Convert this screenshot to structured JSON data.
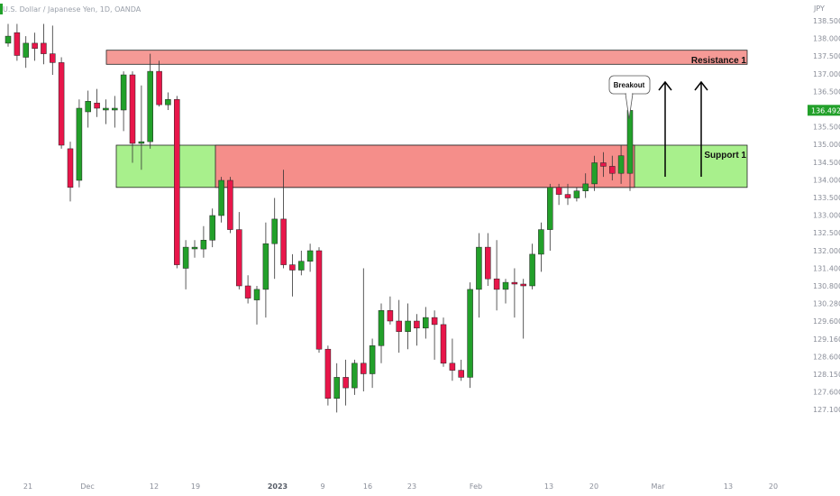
{
  "chart_data": {
    "type": "candlestick",
    "symbol_title": "U.S. Dollar / Japanese Yen, 1D, OANDA",
    "currency": "JPY",
    "last_price": "136.492",
    "y_ticks": [
      "138.500",
      "138.000",
      "137.500",
      "137.000",
      "136.500",
      "136.000",
      "135.500",
      "135.000",
      "134.500",
      "134.000",
      "133.500",
      "133.000",
      "132.500",
      "132.000",
      "131.400",
      "130.800",
      "130.280",
      "129.600",
      "129.160",
      "128.600",
      "128.150",
      "127.600",
      "127.100"
    ],
    "x_ticks": [
      {
        "label": "21",
        "bold": false
      },
      {
        "label": "Dec",
        "bold": false
      },
      {
        "label": "12",
        "bold": false
      },
      {
        "label": "19",
        "bold": false
      },
      {
        "label": "2023",
        "bold": true
      },
      {
        "label": "9",
        "bold": false
      },
      {
        "label": "16",
        "bold": false
      },
      {
        "label": "23",
        "bold": false
      },
      {
        "label": "Feb",
        "bold": false
      },
      {
        "label": "13",
        "bold": false
      },
      {
        "label": "20",
        "bold": false
      },
      {
        "label": "Mar",
        "bold": false
      },
      {
        "label": "13",
        "bold": false
      },
      {
        "label": "20",
        "bold": false
      }
    ],
    "up_color": "#22a02a",
    "down_color": "#e8164a",
    "candles": [
      {
        "o": 138.4,
        "h": 138.95,
        "l": 138.3,
        "c": 138.6
      },
      {
        "o": 138.7,
        "h": 138.95,
        "l": 137.9,
        "c": 138.05
      },
      {
        "o": 138.0,
        "h": 138.6,
        "l": 137.7,
        "c": 138.4
      },
      {
        "o": 138.4,
        "h": 138.7,
        "l": 137.9,
        "c": 138.25
      },
      {
        "o": 138.4,
        "h": 138.95,
        "l": 137.8,
        "c": 138.1
      },
      {
        "o": 138.1,
        "h": 138.9,
        "l": 137.5,
        "c": 137.85
      },
      {
        "o": 137.85,
        "h": 138.0,
        "l": 135.4,
        "c": 135.5
      },
      {
        "o": 135.4,
        "h": 135.6,
        "l": 133.9,
        "c": 134.3
      },
      {
        "o": 134.5,
        "h": 136.8,
        "l": 134.3,
        "c": 136.55
      },
      {
        "o": 136.45,
        "h": 137.05,
        "l": 136.0,
        "c": 136.75
      },
      {
        "o": 136.7,
        "h": 137.1,
        "l": 136.3,
        "c": 136.55
      },
      {
        "o": 136.5,
        "h": 136.8,
        "l": 136.1,
        "c": 136.55
      },
      {
        "o": 136.5,
        "h": 136.9,
        "l": 136.0,
        "c": 136.55
      },
      {
        "o": 136.5,
        "h": 137.6,
        "l": 135.9,
        "c": 137.5
      },
      {
        "o": 137.5,
        "h": 137.6,
        "l": 135.0,
        "c": 135.55
      },
      {
        "o": 135.55,
        "h": 137.2,
        "l": 134.8,
        "c": 135.6
      },
      {
        "o": 135.6,
        "h": 138.1,
        "l": 135.4,
        "c": 137.6
      },
      {
        "o": 137.6,
        "h": 137.9,
        "l": 136.6,
        "c": 136.65
      },
      {
        "o": 136.65,
        "h": 137.0,
        "l": 136.5,
        "c": 136.8
      },
      {
        "o": 136.8,
        "h": 136.9,
        "l": 132.0,
        "c": 132.1
      },
      {
        "o": 132.0,
        "h": 132.8,
        "l": 131.4,
        "c": 132.6
      },
      {
        "o": 132.55,
        "h": 132.8,
        "l": 132.3,
        "c": 132.6
      },
      {
        "o": 132.55,
        "h": 133.2,
        "l": 132.3,
        "c": 132.8
      },
      {
        "o": 132.8,
        "h": 133.7,
        "l": 132.6,
        "c": 133.5
      },
      {
        "o": 133.5,
        "h": 134.6,
        "l": 133.3,
        "c": 134.5
      },
      {
        "o": 134.5,
        "h": 134.6,
        "l": 133.0,
        "c": 133.1
      },
      {
        "o": 133.1,
        "h": 133.6,
        "l": 131.4,
        "c": 131.5
      },
      {
        "o": 131.5,
        "h": 131.8,
        "l": 131.0,
        "c": 131.15
      },
      {
        "o": 131.1,
        "h": 131.5,
        "l": 130.4,
        "c": 131.4
      },
      {
        "o": 131.4,
        "h": 133.3,
        "l": 130.6,
        "c": 132.7
      },
      {
        "o": 132.7,
        "h": 134.0,
        "l": 131.7,
        "c": 133.4
      },
      {
        "o": 133.4,
        "h": 134.8,
        "l": 132.0,
        "c": 132.1
      },
      {
        "o": 132.1,
        "h": 132.4,
        "l": 131.2,
        "c": 131.95
      },
      {
        "o": 131.95,
        "h": 132.5,
        "l": 131.8,
        "c": 132.2
      },
      {
        "o": 132.2,
        "h": 132.7,
        "l": 131.9,
        "c": 132.5
      },
      {
        "o": 132.5,
        "h": 132.6,
        "l": 129.6,
        "c": 129.7
      },
      {
        "o": 129.7,
        "h": 129.8,
        "l": 128.1,
        "c": 128.3
      },
      {
        "o": 128.3,
        "h": 129.3,
        "l": 127.9,
        "c": 128.9
      },
      {
        "o": 128.9,
        "h": 129.4,
        "l": 128.1,
        "c": 128.6
      },
      {
        "o": 128.6,
        "h": 129.4,
        "l": 128.4,
        "c": 129.3
      },
      {
        "o": 129.3,
        "h": 132.0,
        "l": 128.5,
        "c": 129.0
      },
      {
        "o": 129.0,
        "h": 130.0,
        "l": 128.6,
        "c": 129.8
      },
      {
        "o": 129.8,
        "h": 131.0,
        "l": 129.3,
        "c": 130.8
      },
      {
        "o": 130.8,
        "h": 131.2,
        "l": 130.4,
        "c": 130.5
      },
      {
        "o": 130.5,
        "h": 131.1,
        "l": 129.6,
        "c": 130.2
      },
      {
        "o": 130.2,
        "h": 131.0,
        "l": 129.7,
        "c": 130.5
      },
      {
        "o": 130.5,
        "h": 130.7,
        "l": 129.8,
        "c": 130.3
      },
      {
        "o": 130.3,
        "h": 130.9,
        "l": 130.0,
        "c": 130.6
      },
      {
        "o": 130.6,
        "h": 130.8,
        "l": 129.4,
        "c": 130.4
      },
      {
        "o": 130.4,
        "h": 130.6,
        "l": 129.2,
        "c": 129.3
      },
      {
        "o": 129.3,
        "h": 130.0,
        "l": 128.8,
        "c": 129.1
      },
      {
        "o": 129.1,
        "h": 129.4,
        "l": 128.8,
        "c": 128.9
      },
      {
        "o": 128.9,
        "h": 131.6,
        "l": 128.6,
        "c": 131.4
      },
      {
        "o": 131.4,
        "h": 133.0,
        "l": 130.6,
        "c": 132.6
      },
      {
        "o": 132.6,
        "h": 133.0,
        "l": 131.5,
        "c": 131.7
      },
      {
        "o": 131.7,
        "h": 132.8,
        "l": 130.8,
        "c": 131.4
      },
      {
        "o": 131.4,
        "h": 131.7,
        "l": 131.0,
        "c": 131.6
      },
      {
        "o": 131.6,
        "h": 132.0,
        "l": 130.6,
        "c": 131.55
      },
      {
        "o": 131.55,
        "h": 131.7,
        "l": 130.0,
        "c": 131.5
      },
      {
        "o": 131.5,
        "h": 132.7,
        "l": 131.4,
        "c": 132.4
      },
      {
        "o": 132.4,
        "h": 133.3,
        "l": 131.9,
        "c": 133.1
      },
      {
        "o": 133.1,
        "h": 134.4,
        "l": 132.5,
        "c": 134.3
      },
      {
        "o": 134.3,
        "h": 134.4,
        "l": 133.8,
        "c": 134.1
      },
      {
        "o": 134.1,
        "h": 134.4,
        "l": 133.8,
        "c": 134.0
      },
      {
        "o": 134.0,
        "h": 134.3,
        "l": 133.9,
        "c": 134.2
      },
      {
        "o": 134.2,
        "h": 134.7,
        "l": 134.0,
        "c": 134.4
      },
      {
        "o": 134.4,
        "h": 135.2,
        "l": 134.2,
        "c": 135.0
      },
      {
        "o": 135.0,
        "h": 135.3,
        "l": 134.6,
        "c": 134.9
      },
      {
        "o": 134.9,
        "h": 135.2,
        "l": 134.5,
        "c": 134.7
      },
      {
        "o": 134.7,
        "h": 135.5,
        "l": 134.4,
        "c": 135.2
      },
      {
        "o": 134.7,
        "h": 136.8,
        "l": 134.2,
        "c": 136.49
      }
    ],
    "zones": [
      {
        "name": "Resistance 1",
        "type": "resistance",
        "lo": 137.8,
        "hi": 138.2
      },
      {
        "name": "Support 1",
        "type": "support",
        "lo": 134.3,
        "hi": 135.5
      },
      {
        "name": "",
        "type": "supply",
        "lo": 134.3,
        "hi": 135.5
      }
    ],
    "annotations": {
      "callout": "Breakout",
      "resistance_label": "Resistance 1",
      "support_label": "Support 1"
    }
  }
}
